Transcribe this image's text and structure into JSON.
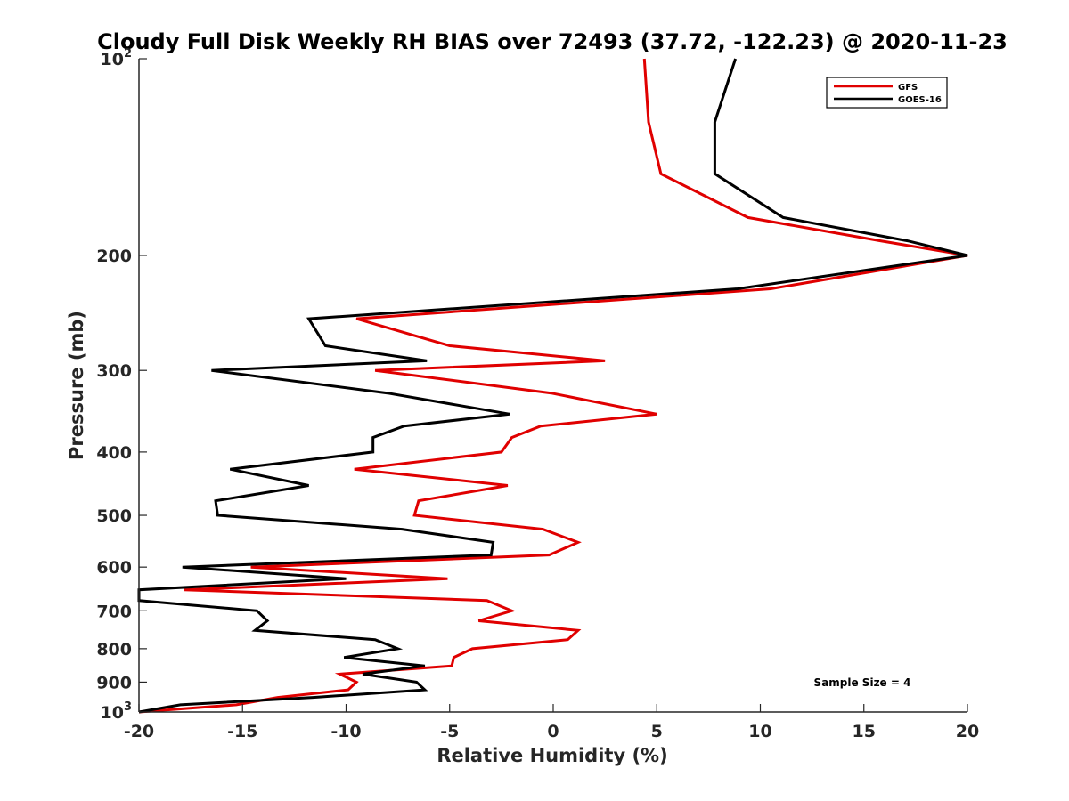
{
  "chart_data": {
    "type": "line",
    "title": "Cloudy Full Disk Weekly RH BIAS over 72493 (37.72, -122.23) @ 2020-11-23",
    "xlabel": "Relative Humidity (%)",
    "ylabel": "Pressure (mb)",
    "xlim": [
      -20,
      20
    ],
    "ylim": [
      100,
      1000
    ],
    "y_scale": "log",
    "y_reversed": true,
    "grid": false,
    "legend_position": "top-right",
    "x_ticks": [
      -20,
      -15,
      -10,
      -5,
      0,
      5,
      10,
      15,
      20
    ],
    "x_tick_labels": [
      "-20",
      "-15",
      "-10",
      "-5",
      "0",
      "5",
      "10",
      "15",
      "20"
    ],
    "y_ticks": [
      200,
      300,
      400,
      500,
      600,
      700,
      800,
      900
    ],
    "y_tick_labels": [
      "200",
      "300",
      "400",
      "500",
      "600",
      "700",
      "800",
      "900"
    ],
    "y_tick_power_labels": [
      {
        "value": 100,
        "base": "10",
        "exp": "2"
      },
      {
        "value": 1000,
        "base": "10",
        "exp": "3"
      }
    ],
    "annotation": "Sample Size = 4",
    "series": [
      {
        "name": "GFS",
        "color": "#e00000",
        "points": [
          [
            4.4,
            100
          ],
          [
            4.6,
            125
          ],
          [
            5.2,
            150
          ],
          [
            9.4,
            175
          ],
          [
            15.8,
            190
          ],
          [
            20,
            200
          ],
          [
            10.5,
            225
          ],
          [
            -9.5,
            250
          ],
          [
            -5,
            275
          ],
          [
            2.5,
            290
          ],
          [
            -8.6,
            300
          ],
          [
            -0.1,
            325
          ],
          [
            5,
            350
          ],
          [
            -0.6,
            365
          ],
          [
            -2.0,
            380
          ],
          [
            -2.5,
            400
          ],
          [
            -9.6,
            425
          ],
          [
            -2.2,
            450
          ],
          [
            -6.5,
            475
          ],
          [
            -6.7,
            500
          ],
          [
            -0.5,
            525
          ],
          [
            1.2,
            550
          ],
          [
            -0.2,
            575
          ],
          [
            -14.6,
            600
          ],
          [
            -5.1,
            625
          ],
          [
            -17.8,
            650
          ],
          [
            -3.2,
            675
          ],
          [
            -2,
            700
          ],
          [
            -3.6,
            725
          ],
          [
            1.2,
            750
          ],
          [
            0.7,
            775
          ],
          [
            -3.9,
            800
          ],
          [
            -4.8,
            825
          ],
          [
            -4.9,
            850
          ],
          [
            -10.3,
            875
          ],
          [
            -9.5,
            900
          ],
          [
            -9.9,
            925
          ],
          [
            -13.3,
            950
          ],
          [
            -15.3,
            975
          ],
          [
            -20,
            1000
          ]
        ]
      },
      {
        "name": "GOES-16",
        "color": "#000000",
        "points": [
          [
            8.8,
            100
          ],
          [
            7.8,
            125
          ],
          [
            7.8,
            150
          ],
          [
            11.1,
            175
          ],
          [
            17.1,
            190
          ],
          [
            20,
            200
          ],
          [
            8.9,
            225
          ],
          [
            -11.8,
            250
          ],
          [
            -11,
            275
          ],
          [
            -6.1,
            290
          ],
          [
            -16.5,
            300
          ],
          [
            -8.0,
            325
          ],
          [
            -2.1,
            350
          ],
          [
            -7.2,
            365
          ],
          [
            -8.7,
            380
          ],
          [
            -8.7,
            400
          ],
          [
            -15.6,
            425
          ],
          [
            -11.8,
            450
          ],
          [
            -16.3,
            475
          ],
          [
            -16.2,
            500
          ],
          [
            -7.3,
            525
          ],
          [
            -2.9,
            550
          ],
          [
            -3,
            575
          ],
          [
            -17.9,
            600
          ],
          [
            -10.0,
            625
          ],
          [
            -20,
            650
          ],
          [
            -20,
            675
          ],
          [
            -14.3,
            700
          ],
          [
            -13.8,
            725
          ],
          [
            -14.4,
            750
          ],
          [
            -8.6,
            775
          ],
          [
            -7.5,
            800
          ],
          [
            -10.1,
            825
          ],
          [
            -6.2,
            850
          ],
          [
            -9.2,
            875
          ],
          [
            -6.6,
            900
          ],
          [
            -6.2,
            925
          ],
          [
            -11.6,
            950
          ],
          [
            -18,
            975
          ],
          [
            -20,
            1000
          ]
        ]
      }
    ]
  }
}
